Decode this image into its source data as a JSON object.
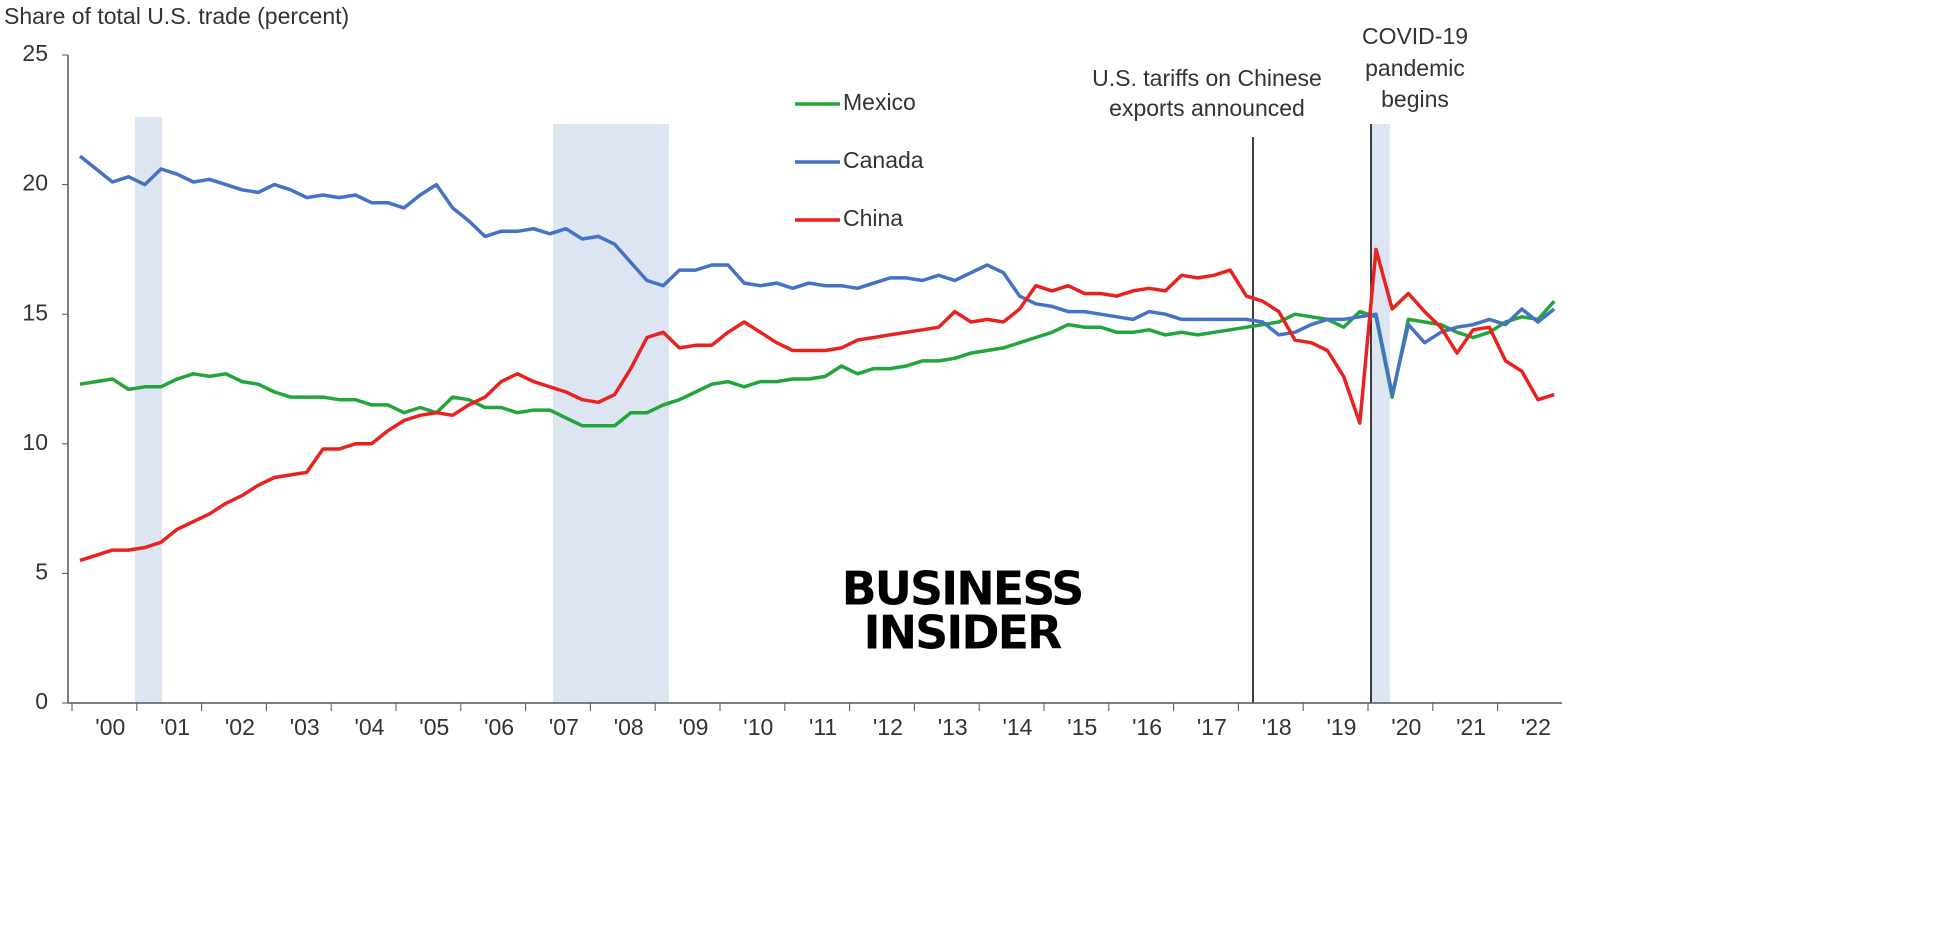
{
  "chart_data": {
    "type": "line",
    "title": "Share of total U.S. trade (percent)",
    "categories": [
      null,
      "'00",
      null,
      null,
      null,
      "'01",
      null,
      null,
      null,
      "'02",
      null,
      null,
      null,
      "'03",
      null,
      null,
      null,
      "'04",
      null,
      null,
      null,
      "'05",
      null,
      null,
      null,
      "'06",
      null,
      null,
      null,
      "'07",
      null,
      null,
      null,
      "'08",
      null,
      null,
      null,
      "'09",
      null,
      null,
      null,
      "'10",
      null,
      null,
      null,
      "'11",
      null,
      null,
      null,
      "'12",
      null,
      null,
      null,
      "'13",
      null,
      null,
      null,
      "'14",
      null,
      null,
      null,
      "'15",
      null,
      null,
      null,
      "'16",
      null,
      null,
      null,
      "'17",
      null,
      null,
      null,
      "'18",
      null,
      null,
      null,
      "'19",
      null,
      null,
      null,
      "'20",
      null,
      null,
      null,
      "'21",
      null,
      null,
      null,
      "'22",
      null,
      null
    ],
    "series": [
      {
        "name": "Mexico",
        "color": "#22a53a",
        "values": [
          12.3,
          12.4,
          12.5,
          12.1,
          12.2,
          12.2,
          12.5,
          12.7,
          12.6,
          12.7,
          12.4,
          12.3,
          12.0,
          11.8,
          11.8,
          11.8,
          11.7,
          11.7,
          11.5,
          11.5,
          11.2,
          11.4,
          11.2,
          11.8,
          11.7,
          11.4,
          11.4,
          11.2,
          11.3,
          11.3,
          11.0,
          10.7,
          10.7,
          10.7,
          11.2,
          11.2,
          11.5,
          11.7,
          12.0,
          12.3,
          12.4,
          12.2,
          12.4,
          12.4,
          12.5,
          12.5,
          12.6,
          13.0,
          12.7,
          12.9,
          12.9,
          13.0,
          13.2,
          13.2,
          13.3,
          13.5,
          13.6,
          13.7,
          13.9,
          14.1,
          14.3,
          14.6,
          14.5,
          14.5,
          14.3,
          14.3,
          14.4,
          14.2,
          14.3,
          14.2,
          14.3,
          14.4,
          14.5,
          14.6,
          14.7,
          15.0,
          14.9,
          14.8,
          14.5,
          15.1,
          14.9,
          11.8,
          14.8,
          14.7,
          14.6,
          14.3,
          14.1,
          14.3,
          14.7,
          14.9,
          14.8,
          15.5
        ]
      },
      {
        "name": "Canada",
        "color": "#4472c4",
        "values": [
          21.1,
          20.6,
          20.1,
          20.3,
          20.0,
          20.6,
          20.4,
          20.1,
          20.2,
          20.0,
          19.8,
          19.7,
          20.0,
          19.8,
          19.5,
          19.6,
          19.5,
          19.6,
          19.3,
          19.3,
          19.1,
          19.6,
          20.0,
          19.1,
          18.6,
          18.0,
          18.2,
          18.2,
          18.3,
          18.1,
          18.3,
          17.9,
          18.0,
          17.7,
          17.0,
          16.3,
          16.1,
          16.7,
          16.7,
          16.9,
          16.9,
          16.2,
          16.1,
          16.2,
          16.0,
          16.2,
          16.1,
          16.1,
          16.0,
          16.2,
          16.4,
          16.4,
          16.3,
          16.5,
          16.3,
          16.6,
          16.9,
          16.6,
          15.7,
          15.4,
          15.3,
          15.1,
          15.1,
          15.0,
          14.9,
          14.8,
          15.1,
          15.0,
          14.8,
          14.8,
          14.8,
          14.8,
          14.8,
          14.7,
          14.2,
          14.3,
          14.6,
          14.8,
          14.8,
          14.9,
          15.0,
          11.9,
          14.6,
          13.9,
          14.3,
          14.5,
          14.6,
          14.8,
          14.6,
          15.2,
          14.7,
          15.2
        ]
      },
      {
        "name": "China",
        "color": "#e8221f",
        "values": [
          5.5,
          5.7,
          5.9,
          5.9,
          6.0,
          6.2,
          6.7,
          7.0,
          7.3,
          7.7,
          8.0,
          8.4,
          8.7,
          8.8,
          8.9,
          9.8,
          9.8,
          10.0,
          10.0,
          10.5,
          10.9,
          11.1,
          11.2,
          11.1,
          11.5,
          11.8,
          12.4,
          12.7,
          12.4,
          12.2,
          12.0,
          11.7,
          11.6,
          11.9,
          12.9,
          14.1,
          14.3,
          13.7,
          13.8,
          13.8,
          14.3,
          14.7,
          14.3,
          13.9,
          13.6,
          13.6,
          13.6,
          13.7,
          14.0,
          14.1,
          14.2,
          14.3,
          14.4,
          14.5,
          15.1,
          14.7,
          14.8,
          14.7,
          15.2,
          16.1,
          15.9,
          16.1,
          15.8,
          15.8,
          15.7,
          15.9,
          16.0,
          15.9,
          16.5,
          16.4,
          16.5,
          16.7,
          15.7,
          15.5,
          15.1,
          14.0,
          13.9,
          13.6,
          12.6,
          10.8,
          17.5,
          15.2,
          15.8,
          15.1,
          14.5,
          13.5,
          14.4,
          14.5,
          13.2,
          12.8,
          11.7,
          11.9
        ]
      }
    ],
    "ylim": [
      0,
      25
    ],
    "yticks": [
      0,
      5,
      10,
      15,
      20,
      25
    ],
    "grid": false,
    "annotations": [
      {
        "lines": [
          "U.S. tariffs on Chinese",
          "exports announced"
        ]
      },
      {
        "lines": [
          "COVID-19",
          "pandemic",
          "begins"
        ]
      }
    ],
    "logo": [
      "BUSINESS",
      "INSIDER"
    ]
  }
}
